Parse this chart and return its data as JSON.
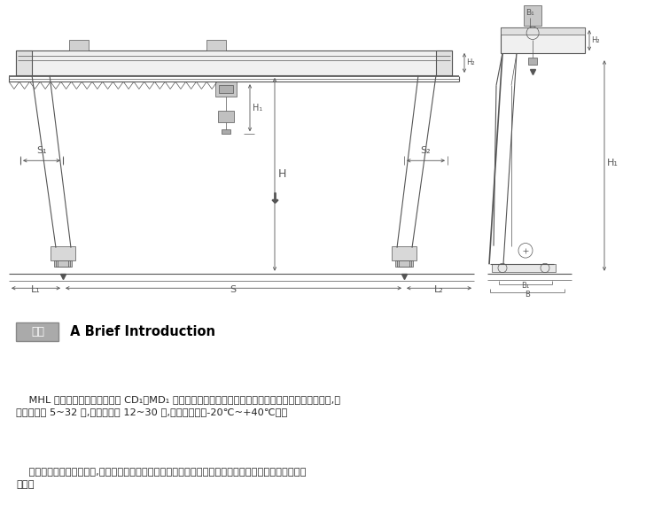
{
  "bg_color": "#ffffff",
  "lc": "#555555",
  "lc_dim": "#444444",
  "intro_box_text": "简介",
  "intro_title": " A Brief Introduction",
  "para1_indent": "    MHL 型电动葫芦门式起重机与 CD₁、MD₁ 等型号的电动葫芦配套使用，是一种有轨运行的小型起重机,其",
  "para1_line2": "适用起重量 5~32 吨,适用跨度为 12~30 米,工作环境内外-20℃~+40℃内。",
  "para2_indent": "    本产品为一般用途起重机,多用于露天场所及仓库的装卸或抓取物料。本产品有地面操纵和室内操纵两种",
  "para2_line2": "型式。"
}
